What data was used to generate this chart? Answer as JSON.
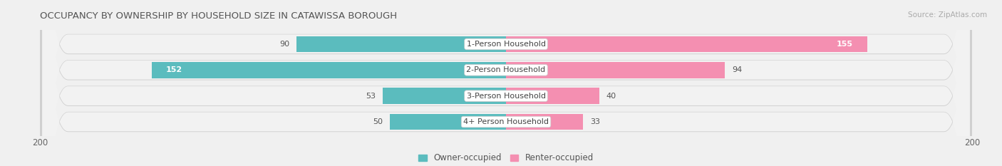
{
  "title": "OCCUPANCY BY OWNERSHIP BY HOUSEHOLD SIZE IN CATAWISSA BOROUGH",
  "source": "Source: ZipAtlas.com",
  "categories": [
    "1-Person Household",
    "2-Person Household",
    "3-Person Household",
    "4+ Person Household"
  ],
  "owner_values": [
    90,
    152,
    53,
    50
  ],
  "renter_values": [
    155,
    94,
    40,
    33
  ],
  "owner_color": "#5bbcbe",
  "renter_color": "#f48fb1",
  "axis_max": 200,
  "background_color": "#f0f0f0",
  "bar_row_color": "#e0e0e0",
  "bar_row_inner_color": "#f8f8f8",
  "label_bg_color": "#ffffff",
  "title_fontsize": 9.5,
  "tick_fontsize": 8.5,
  "bar_label_fontsize": 8,
  "legend_fontsize": 8.5,
  "source_fontsize": 7.5
}
